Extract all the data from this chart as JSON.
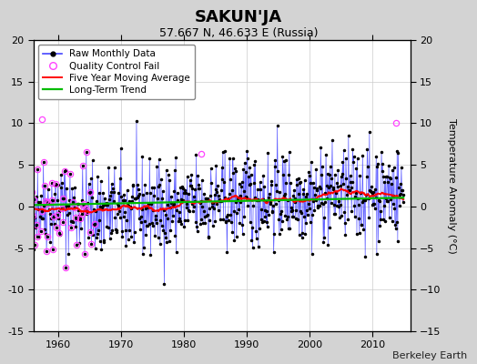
{
  "title": "SAKUN'JA",
  "subtitle": "57.667 N, 46.633 E (Russia)",
  "ylabel_right": "Temperature Anomaly (°C)",
  "attribution": "Berkeley Earth",
  "year_start": 1955,
  "year_end": 2015,
  "ylim": [
    -15,
    20
  ],
  "yticks": [
    -15,
    -10,
    -5,
    0,
    5,
    10,
    15,
    20
  ],
  "xticks": [
    1960,
    1970,
    1980,
    1990,
    2000,
    2010
  ],
  "bg_color": "#d3d3d3",
  "plot_bg_color": "#ffffff",
  "line_color": "#4444ff",
  "dot_color": "#000000",
  "qc_color": "#ff44ff",
  "moving_avg_color": "#ff0000",
  "trend_color": "#00bb00",
  "legend_labels": [
    "Raw Monthly Data",
    "Quality Control Fail",
    "Five Year Moving Average",
    "Long-Term Trend"
  ],
  "seed": 42
}
